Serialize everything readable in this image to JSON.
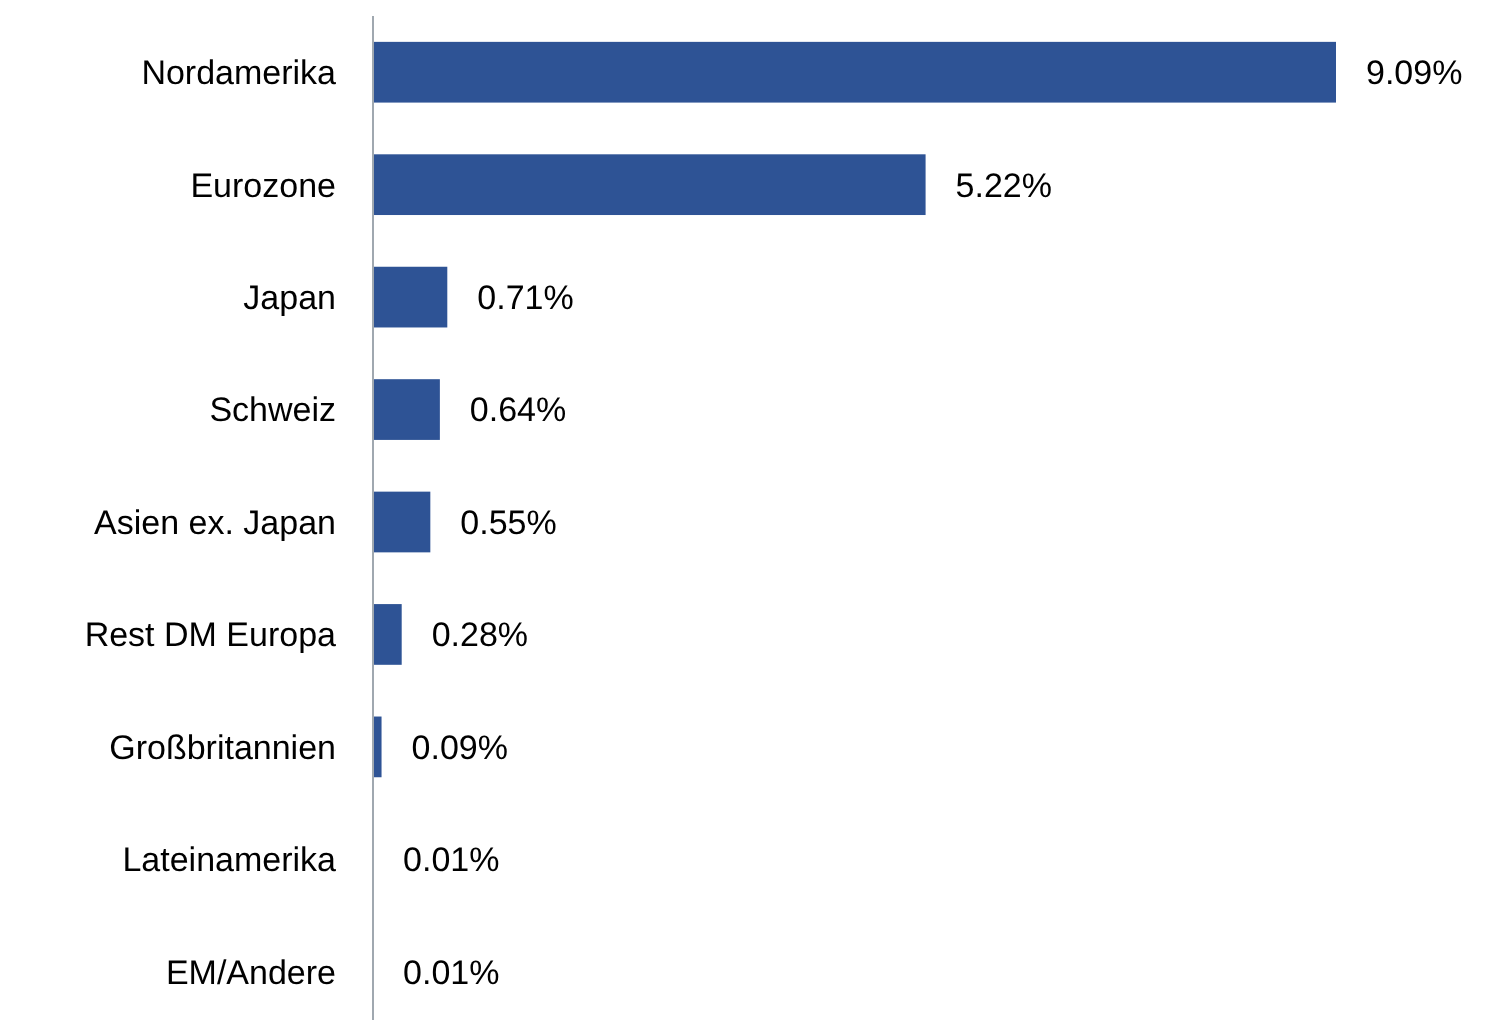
{
  "chart_data": {
    "type": "bar",
    "orientation": "horizontal",
    "categories": [
      "Nordamerika",
      "Eurozone",
      "Japan",
      "Schweiz",
      "Asien ex. Japan",
      "Rest DM Europa",
      "Großbritannien",
      "Lateinamerika",
      "EM/Andere"
    ],
    "values": [
      9.09,
      5.22,
      0.71,
      0.64,
      0.55,
      0.28,
      0.09,
      0.01,
      0.01
    ],
    "value_labels": [
      "9.09%",
      "5.22%",
      "0.71%",
      "0.64%",
      "0.55%",
      "0.28%",
      "0.09%",
      "0.01%",
      "0.01%"
    ],
    "color": "#2e5395"
  }
}
